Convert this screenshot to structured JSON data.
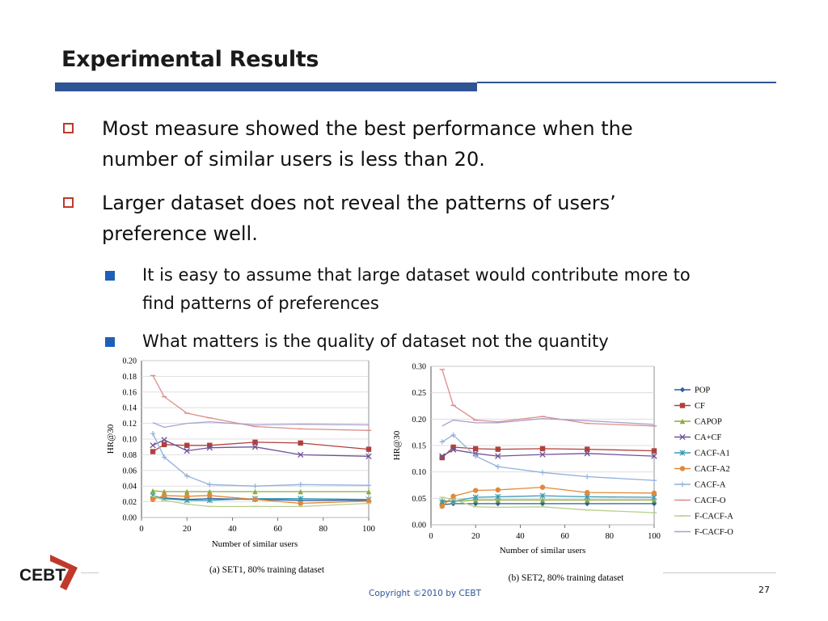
{
  "slide": {
    "title": "Experimental Results",
    "bullets": [
      {
        "line1": "Most measure showed the best performance when the",
        "line2": "number of similar users is less than 20."
      },
      {
        "line1": "Larger dataset does not reveal the patterns of users’",
        "line2": "preference well."
      }
    ],
    "subbullets": [
      {
        "line1": "It is easy to assume that large dataset would contribute more to",
        "line2": "find patterns of preferences"
      },
      {
        "line1": "What matters is the quality of dataset not the quantity",
        "line2": ""
      }
    ],
    "copyright": "Copyright ©2010 by CEBT",
    "page_number": "27",
    "logo_text": "CEBT"
  },
  "chart_data": [
    {
      "type": "line",
      "caption": "(a) SET1, 80% training dataset",
      "xlabel": "Number of similar users",
      "ylabel": "HR@30",
      "xlim": [
        0,
        100
      ],
      "ylim": [
        0,
        0.2
      ],
      "xticks": [
        "0",
        "20",
        "40",
        "60",
        "80",
        "100"
      ],
      "yticks": [
        "0.00",
        "0.02",
        "0.04",
        "0.06",
        "0.08",
        "0.10",
        "0.12",
        "0.14",
        "0.16",
        "0.18",
        "0.20"
      ],
      "x": [
        5,
        10,
        20,
        30,
        50,
        70,
        100
      ],
      "series": [
        {
          "name": "POP",
          "color": "#2e5e9e",
          "marker": "diamond",
          "values": [
            0.026,
            0.025,
            0.023,
            0.024,
            0.023,
            0.022,
            0.022
          ]
        },
        {
          "name": "CF",
          "color": "#b0403c",
          "marker": "square",
          "values": [
            0.084,
            0.093,
            0.092,
            0.092,
            0.096,
            0.095,
            0.087
          ]
        },
        {
          "name": "CAPOP",
          "color": "#8bac3e",
          "marker": "triangle",
          "values": [
            0.034,
            0.033,
            0.033,
            0.033,
            0.033,
            0.033,
            0.033
          ]
        },
        {
          "name": "CA+CF",
          "color": "#6f5298",
          "marker": "x",
          "values": [
            0.092,
            0.099,
            0.085,
            0.089,
            0.09,
            0.08,
            0.078
          ]
        },
        {
          "name": "CACF-A1",
          "color": "#3a9ab5",
          "marker": "star",
          "values": [
            0.028,
            0.024,
            0.022,
            0.022,
            0.024,
            0.024,
            0.023
          ]
        },
        {
          "name": "CACF-A2",
          "color": "#e2883a",
          "marker": "circle",
          "values": [
            0.023,
            0.028,
            0.027,
            0.028,
            0.023,
            0.018,
            0.021
          ]
        },
        {
          "name": "CACF-A",
          "color": "#8fb0dc",
          "marker": "plus",
          "values": [
            0.107,
            0.077,
            0.053,
            0.042,
            0.04,
            0.042,
            0.041
          ]
        },
        {
          "name": "CACF-O",
          "color": "#dc8e8a",
          "marker": "dash",
          "values": [
            0.181,
            0.154,
            0.133,
            0.127,
            0.116,
            0.113,
            0.111
          ]
        },
        {
          "name": "F-CACF-A",
          "color": "#b9cf8e",
          "marker": "dash",
          "values": [
            0.027,
            0.022,
            0.017,
            0.014,
            0.014,
            0.014,
            0.018
          ]
        },
        {
          "name": "F-CACF-O",
          "color": "#a9a0cb",
          "marker": "none",
          "values": [
            0.121,
            0.115,
            0.12,
            0.122,
            0.118,
            0.119,
            0.118
          ]
        }
      ]
    },
    {
      "type": "line",
      "caption": "(b) SET2, 80% training dataset",
      "xlabel": "Number of similar users",
      "ylabel": "HR@30",
      "xlim": [
        0,
        100
      ],
      "ylim": [
        0,
        0.3
      ],
      "xticks": [
        "0",
        "20",
        "40",
        "60",
        "80",
        "100"
      ],
      "yticks": [
        "0.00",
        "0.05",
        "0.10",
        "0.15",
        "0.20",
        "0.25",
        "0.30"
      ],
      "x": [
        5,
        10,
        20,
        30,
        50,
        70,
        100
      ],
      "series": [
        {
          "name": "POP",
          "color": "#2e5e9e",
          "marker": "diamond",
          "values": [
            0.038,
            0.04,
            0.04,
            0.04,
            0.04,
            0.04,
            0.04
          ]
        },
        {
          "name": "CF",
          "color": "#b0403c",
          "marker": "square",
          "values": [
            0.127,
            0.147,
            0.144,
            0.143,
            0.144,
            0.143,
            0.14
          ]
        },
        {
          "name": "CAPOP",
          "color": "#8bac3e",
          "marker": "triangle",
          "values": [
            0.046,
            0.044,
            0.047,
            0.047,
            0.047,
            0.047,
            0.047
          ]
        },
        {
          "name": "CA+CF",
          "color": "#6f5298",
          "marker": "x",
          "values": [
            0.13,
            0.142,
            0.135,
            0.13,
            0.133,
            0.135,
            0.13
          ]
        },
        {
          "name": "CACF-A1",
          "color": "#3a9ab5",
          "marker": "star",
          "values": [
            0.043,
            0.045,
            0.052,
            0.053,
            0.055,
            0.053,
            0.052
          ]
        },
        {
          "name": "CACF-A2",
          "color": "#e2883a",
          "marker": "circle",
          "values": [
            0.035,
            0.054,
            0.065,
            0.066,
            0.071,
            0.061,
            0.06
          ]
        },
        {
          "name": "CACF-A",
          "color": "#8fb0dc",
          "marker": "plus",
          "values": [
            0.157,
            0.17,
            0.13,
            0.11,
            0.099,
            0.091,
            0.084
          ]
        },
        {
          "name": "CACF-O",
          "color": "#dc8e8a",
          "marker": "dash",
          "values": [
            0.294,
            0.226,
            0.198,
            0.195,
            0.205,
            0.192,
            0.187
          ]
        },
        {
          "name": "F-CACF-A",
          "color": "#b9cf8e",
          "marker": "dash",
          "values": [
            0.052,
            0.048,
            0.034,
            0.033,
            0.034,
            0.028,
            0.023
          ]
        },
        {
          "name": "F-CACF-O",
          "color": "#a9a0cb",
          "marker": "none",
          "values": [
            0.187,
            0.198,
            0.193,
            0.193,
            0.201,
            0.197,
            0.19
          ]
        }
      ]
    }
  ]
}
